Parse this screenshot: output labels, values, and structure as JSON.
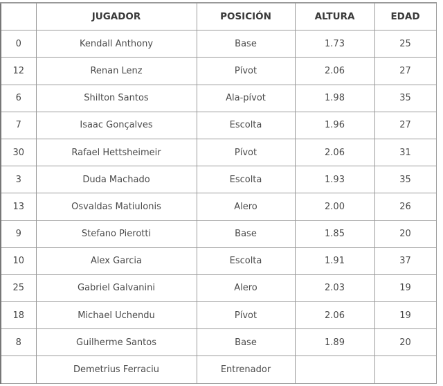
{
  "table": {
    "headers": [
      "",
      "JUGADOR",
      "POSICIÓN",
      "ALTURA",
      "EDAD"
    ],
    "rows": [
      [
        "0",
        "Kendall Anthony",
        "Base",
        "1.73",
        "25"
      ],
      [
        "12",
        "Renan Lenz",
        "Pívot",
        "2.06",
        "27"
      ],
      [
        "6",
        "Shilton Santos",
        "Ala-pívot",
        "1.98",
        "35"
      ],
      [
        "7",
        "Isaac Gonçalves",
        "Escolta",
        "1.96",
        "27"
      ],
      [
        "30",
        "Rafael Hettsheimeir",
        "Pívot",
        "2.06",
        "31"
      ],
      [
        "3",
        "Duda Machado",
        "Escolta",
        "1.93",
        "35"
      ],
      [
        "13",
        "Osvaldas Matiulonis",
        "Alero",
        "2.00",
        "26"
      ],
      [
        "9",
        "Stefano Pierotti",
        "Base",
        "1.85",
        "20"
      ],
      [
        "10",
        "Alex Garcia",
        "Escolta",
        "1.91",
        "37"
      ],
      [
        "25",
        "Gabriel Galvanini",
        "Alero",
        "2.03",
        "19"
      ],
      [
        "18",
        "Michael Uchendu",
        "Pívot",
        "2.06",
        "19"
      ],
      [
        "8",
        "Guilherme Santos",
        "Base",
        "1.89",
        "20"
      ],
      [
        "",
        "Demetrius Ferraciu",
        "Entrenador",
        "",
        ""
      ]
    ]
  }
}
